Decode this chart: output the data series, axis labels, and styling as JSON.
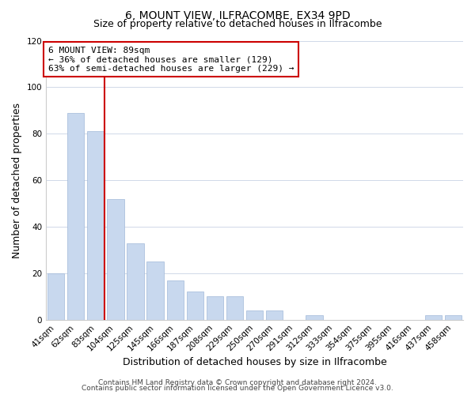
{
  "title": "6, MOUNT VIEW, ILFRACOMBE, EX34 9PD",
  "subtitle": "Size of property relative to detached houses in Ilfracombe",
  "xlabel": "Distribution of detached houses by size in Ilfracombe",
  "ylabel": "Number of detached properties",
  "bar_labels": [
    "41sqm",
    "62sqm",
    "83sqm",
    "104sqm",
    "125sqm",
    "145sqm",
    "166sqm",
    "187sqm",
    "208sqm",
    "229sqm",
    "250sqm",
    "270sqm",
    "291sqm",
    "312sqm",
    "333sqm",
    "354sqm",
    "375sqm",
    "395sqm",
    "416sqm",
    "437sqm",
    "458sqm"
  ],
  "bar_values": [
    20,
    89,
    81,
    52,
    33,
    25,
    17,
    12,
    10,
    10,
    4,
    4,
    0,
    2,
    0,
    0,
    0,
    0,
    0,
    2,
    2
  ],
  "bar_color": "#c8d8ee",
  "bar_edge_color": "#a0b8d8",
  "vline_color": "#cc0000",
  "ylim": [
    0,
    120
  ],
  "yticks": [
    0,
    20,
    40,
    60,
    80,
    100,
    120
  ],
  "annotation_title": "6 MOUNT VIEW: 89sqm",
  "annotation_line1": "← 36% of detached houses are smaller (129)",
  "annotation_line2": "63% of semi-detached houses are larger (229) →",
  "annotation_box_color": "#ffffff",
  "annotation_box_edge": "#cc0000",
  "footer1": "Contains HM Land Registry data © Crown copyright and database right 2024.",
  "footer2": "Contains public sector information licensed under the Open Government Licence v3.0.",
  "background_color": "#ffffff",
  "grid_color": "#d0d8e8",
  "title_fontsize": 10,
  "subtitle_fontsize": 9,
  "axis_label_fontsize": 9,
  "tick_fontsize": 7.5,
  "footer_fontsize": 6.5
}
